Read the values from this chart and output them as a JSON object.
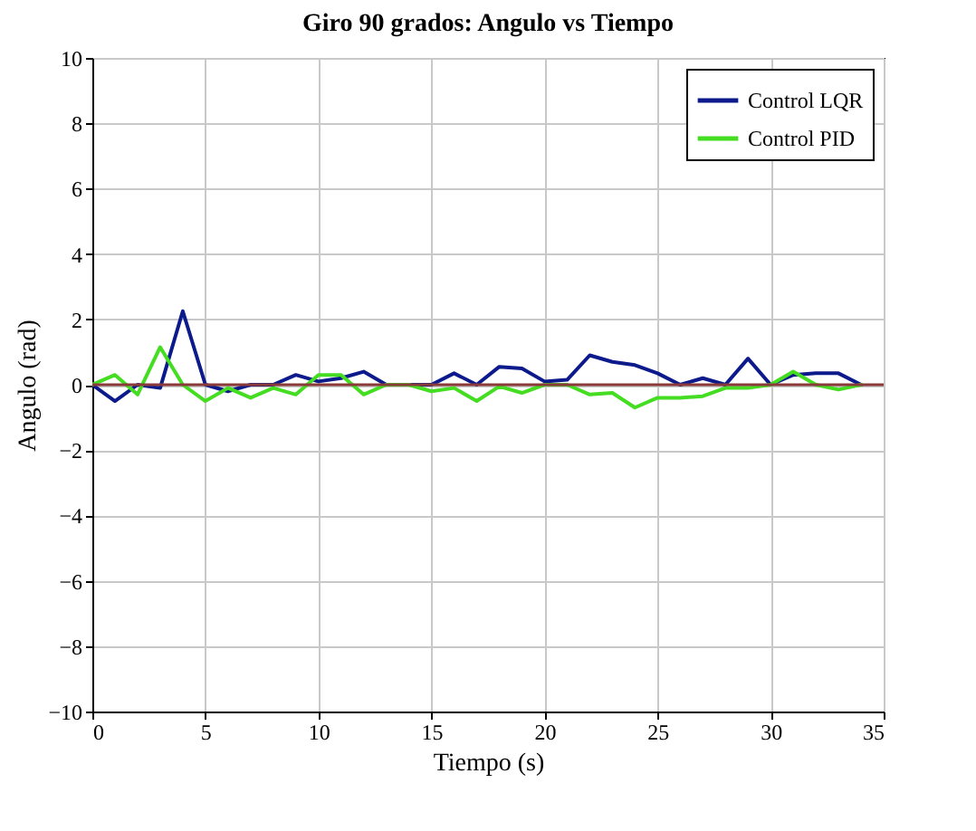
{
  "chart_data": {
    "type": "line",
    "title": "Giro 90 grados: Angulo vs Tiempo",
    "xlabel": "Tiempo (s)",
    "ylabel": "Angulo (rad)",
    "x": [
      0,
      1,
      2,
      3,
      4,
      5,
      6,
      7,
      8,
      9,
      10,
      11,
      12,
      13,
      14,
      15,
      16,
      17,
      18,
      19,
      20,
      21,
      22,
      23,
      24,
      25,
      26,
      27,
      28,
      29,
      30,
      31,
      32,
      33,
      34
    ],
    "series": [
      {
        "name": "Control LQR",
        "color": "#0c1a8c",
        "values": [
          0,
          -0.5,
          0,
          -0.1,
          2.25,
          0,
          -0.2,
          0,
          0,
          0.3,
          0.1,
          0.2,
          0.4,
          0,
          0,
          0,
          0.35,
          0,
          0.55,
          0.5,
          0.1,
          0.15,
          0.9,
          0.7,
          0.6,
          0.35,
          0,
          0.2,
          0,
          0.8,
          0,
          0.3,
          0.35,
          0.35,
          0
        ]
      },
      {
        "name": "Control PID",
        "color": "#44dd22",
        "values": [
          0,
          0.3,
          -0.3,
          1.15,
          0,
          -0.5,
          -0.1,
          -0.4,
          -0.1,
          -0.3,
          0.3,
          0.3,
          -0.3,
          0,
          0,
          -0.2,
          -0.1,
          -0.5,
          -0.05,
          -0.25,
          0,
          0,
          -0.3,
          -0.25,
          -0.7,
          -0.4,
          -0.4,
          -0.35,
          -0.1,
          -0.1,
          0,
          0.4,
          0,
          -0.15,
          0
        ]
      }
    ],
    "xlim": [
      0,
      35
    ],
    "xticks": [
      0,
      5,
      10,
      15,
      20,
      25,
      30,
      35
    ],
    "ylim": [
      -10,
      10
    ],
    "yticks": [
      -10,
      -8,
      -6,
      -4,
      -2,
      0,
      2,
      4,
      6,
      8,
      10
    ],
    "ref_lines": [
      {
        "axis": "y",
        "value": 0,
        "color": "#8b3a3a"
      }
    ],
    "grid": true,
    "legend": "top right"
  }
}
